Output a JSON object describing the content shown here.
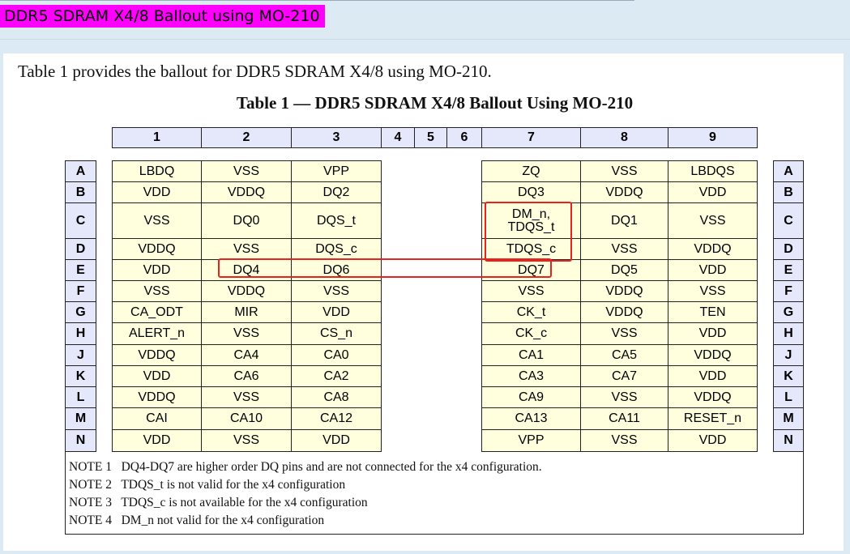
{
  "window": {
    "title": "DDR5 SDRAM X4/8 Ballout using MO-210"
  },
  "intro": "Table 1 provides the ballout for DDR5 SDRAM X4/8 using MO-210.",
  "table_title": "Table 1 — DDR5 SDRAM X4/8 Ballout Using MO-210",
  "columns": [
    "1",
    "2",
    "3",
    "4",
    "5",
    "6",
    "7",
    "8",
    "9"
  ],
  "rows": [
    {
      "label": "A",
      "cells": [
        "LBDQ",
        "VSS",
        "VPP",
        "ZQ",
        "VSS",
        "LBDQS"
      ]
    },
    {
      "label": "B",
      "cells": [
        "VDD",
        "VDDQ",
        "DQ2",
        "DQ3",
        "VDDQ",
        "VDD"
      ]
    },
    {
      "label": "C",
      "cells": [
        "VSS",
        "DQ0",
        "DQS_t",
        "DM_n,\nTDQS_t",
        "DQ1",
        "VSS"
      ]
    },
    {
      "label": "D",
      "cells": [
        "VDDQ",
        "VSS",
        "DQS_c",
        "TDQS_c",
        "VSS",
        "VDDQ"
      ]
    },
    {
      "label": "E",
      "cells": [
        "VDD",
        "DQ4",
        "DQ6",
        "DQ7",
        "DQ5",
        "VDD"
      ]
    },
    {
      "label": "F",
      "cells": [
        "VSS",
        "VDDQ",
        "VSS",
        "VSS",
        "VDDQ",
        "VSS"
      ]
    },
    {
      "label": "G",
      "cells": [
        "CA_ODT",
        "MIR",
        "VDD",
        "CK_t",
        "VDDQ",
        "TEN"
      ]
    },
    {
      "label": "H",
      "cells": [
        "ALERT_n",
        "VSS",
        "CS_n",
        "CK_c",
        "VSS",
        "VDD"
      ]
    },
    {
      "label": "J",
      "cells": [
        "VDDQ",
        "CA4",
        "CA0",
        "CA1",
        "CA5",
        "VDDQ"
      ]
    },
    {
      "label": "K",
      "cells": [
        "VDD",
        "CA6",
        "CA2",
        "CA3",
        "CA7",
        "VDD"
      ]
    },
    {
      "label": "L",
      "cells": [
        "VDDQ",
        "VSS",
        "CA8",
        "CA9",
        "VSS",
        "VDDQ"
      ]
    },
    {
      "label": "M",
      "cells": [
        "CAI",
        "CA10",
        "CA12",
        "CA13",
        "CA11",
        "RESET_n"
      ]
    },
    {
      "label": "N",
      "cells": [
        "VDD",
        "VSS",
        "VDD",
        "VPP",
        "VSS",
        "VDD"
      ]
    }
  ],
  "notes": [
    {
      "label": "NOTE 1",
      "text": "DQ4-DQ7 are higher order DQ pins and are not connected for the x4 configuration."
    },
    {
      "label": "NOTE 2",
      "text": "TDQS_t is not valid for the x4 configuration"
    },
    {
      "label": "NOTE 3",
      "text": "TDQS_c is not available for the x4 configuration"
    },
    {
      "label": "NOTE 4",
      "text": "DM_n not valid for the x4 configuration"
    }
  ],
  "colors": {
    "title_highlight": "#ff00ff",
    "cell_fill": "#ffffde",
    "header_fill": "#e5e7fb",
    "annotation": "#e8231f"
  }
}
